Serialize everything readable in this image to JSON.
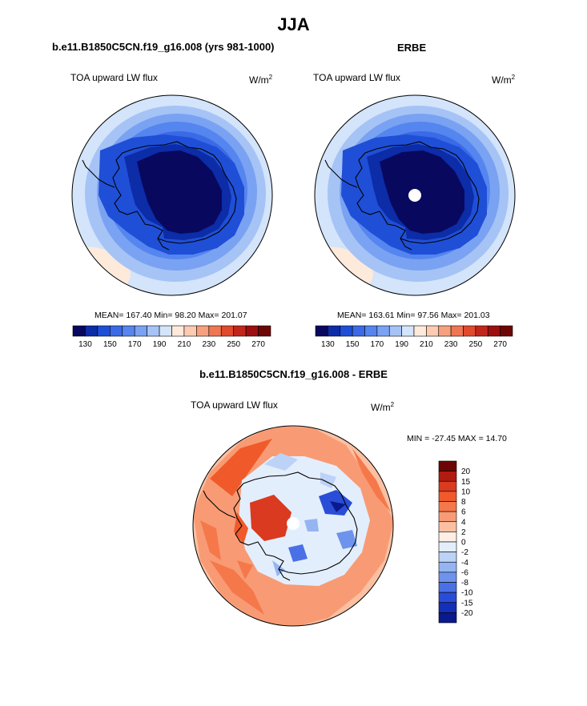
{
  "page": {
    "title": "JJA",
    "panel_left_title": "b.e11.B1850C5CN.f19_g16.008 (yrs 981-1000)",
    "panel_right_title": "ERBE",
    "panel_diff_title": "b.e11.B1850C5CN.f19_g16.008 - ERBE"
  },
  "chart_data": [
    {
      "type": "heatmap",
      "title": "b.e11.B1850C5CN.f19_g16.008 (yrs 981-1000)",
      "left_label": "TOA upward LW flux",
      "units_label": "W/m",
      "units_exp": "2",
      "stats_text": "MEAN= 167.40  Min=  98.20  Max= 201.07",
      "mean": 167.4,
      "min": 98.2,
      "max": 201.07,
      "levels": [
        130,
        140,
        150,
        160,
        170,
        180,
        190,
        200,
        210,
        220,
        230,
        240,
        250,
        260,
        270
      ],
      "tick_labels": [
        "130",
        "150",
        "170",
        "190",
        "210",
        "230",
        "250",
        "270"
      ],
      "colors": [
        "#08085e",
        "#0c2ca8",
        "#1f4fd6",
        "#3a6ae6",
        "#5585ee",
        "#7aa2f2",
        "#a6c3f6",
        "#d3e4fb",
        "#feeadb",
        "#fbcbb2",
        "#f6a07d",
        "#ef7652",
        "#e04a2d",
        "#c2261b",
        "#9d0f0f",
        "#6e0505"
      ]
    },
    {
      "type": "heatmap",
      "title": "ERBE",
      "left_label": "TOA upward LW flux",
      "units_label": "W/m",
      "units_exp": "2",
      "stats_text": "MEAN= 163.61  Min=  97.56  Max= 201.03",
      "mean": 163.61,
      "min": 97.56,
      "max": 201.03,
      "levels": [
        130,
        140,
        150,
        160,
        170,
        180,
        190,
        200,
        210,
        220,
        230,
        240,
        250,
        260,
        270
      ],
      "tick_labels": [
        "130",
        "150",
        "170",
        "190",
        "210",
        "230",
        "250",
        "270"
      ],
      "colors": [
        "#08085e",
        "#0c2ca8",
        "#1f4fd6",
        "#3a6ae6",
        "#5585ee",
        "#7aa2f2",
        "#a6c3f6",
        "#d3e4fb",
        "#feeadb",
        "#fbcbb2",
        "#f6a07d",
        "#ef7652",
        "#e04a2d",
        "#c2261b",
        "#9d0f0f",
        "#6e0505"
      ]
    },
    {
      "type": "heatmap",
      "title": "b.e11.B1850C5CN.f19_g16.008 - ERBE",
      "left_label": "TOA upward LW flux",
      "units_label": "W/m",
      "units_exp": "2",
      "stats_text": "MIN = -27.45  MAX =  14.70",
      "min": -27.45,
      "max": 14.7,
      "levels": [
        -20,
        -15,
        -10,
        -8,
        -6,
        -4,
        -2,
        0,
        2,
        4,
        6,
        8,
        10,
        15,
        20
      ],
      "tick_labels": [
        "20",
        "15",
        "10",
        "8",
        "6",
        "4",
        "2",
        "0",
        "-2",
        "-4",
        "-6",
        "-8",
        "-10",
        "-15",
        "-20"
      ],
      "colors": [
        "#6e0505",
        "#b01c0f",
        "#d93a20",
        "#f05a2a",
        "#f5784b",
        "#f89b74",
        "#fbc0a2",
        "#feeee3",
        "#e3eefd",
        "#bcd2f7",
        "#95b4f2",
        "#6e93ec",
        "#4a70e6",
        "#2a4dd8",
        "#142fb8",
        "#0a1a8c"
      ]
    }
  ]
}
